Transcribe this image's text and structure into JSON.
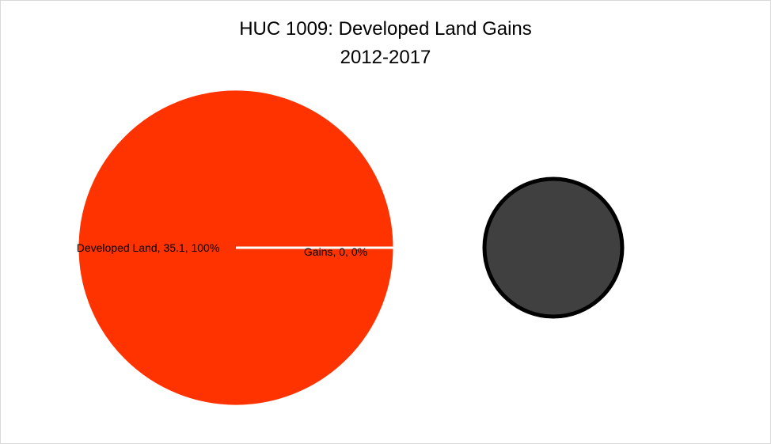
{
  "chart_data": {
    "type": "pie-of-pie",
    "title": "HUC 1009: Developed Land Gains",
    "subtitle": "2012-2017",
    "categories": [
      "Developed Land",
      "Gains"
    ],
    "values": [
      35.1,
      0
    ],
    "value_labels": [
      "Developed Land, 35.1, 100%",
      "Gains, 0, 0%"
    ],
    "colors": [
      "#FF3300",
      "#404040"
    ]
  }
}
